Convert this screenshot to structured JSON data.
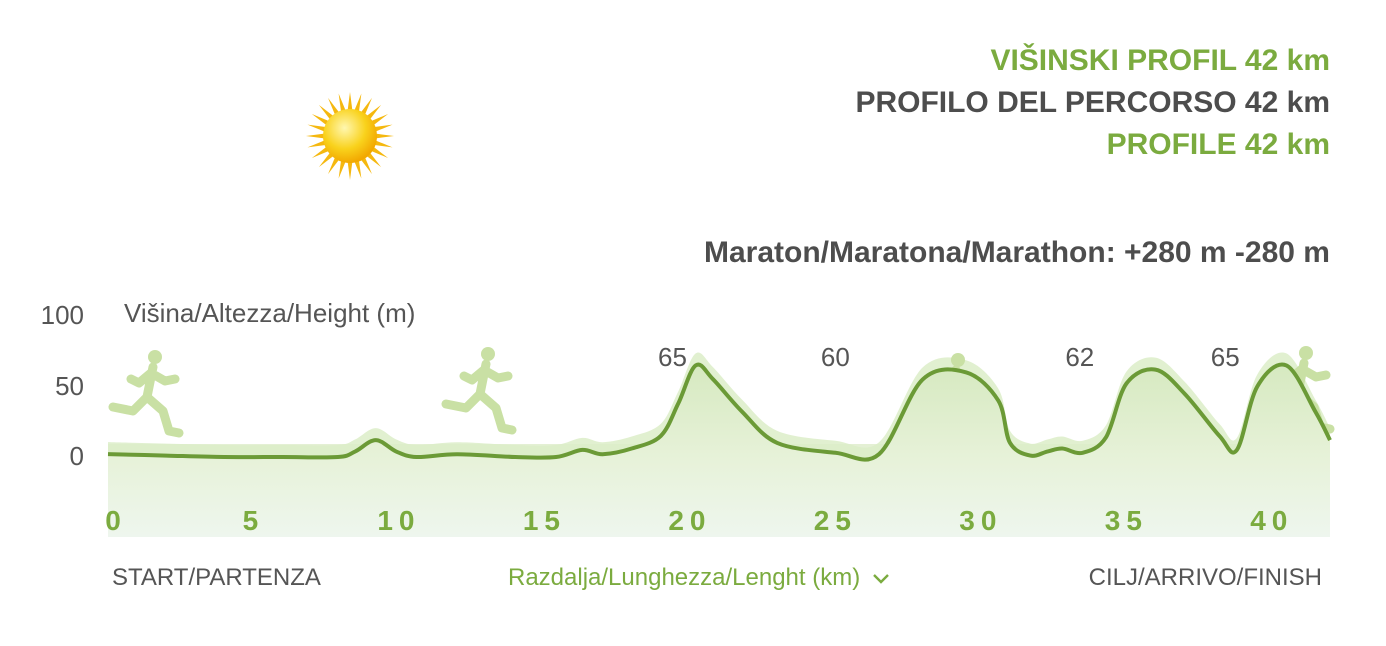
{
  "titles": {
    "slovenian": "VIŠINSKI PROFIL 42 km",
    "italian": "PROFILO DEL PERCORSO 42 km",
    "english": "PROFILE 42 km"
  },
  "summary": "Maraton/Maratona/Marathon: +280 m -280 m",
  "labels": {
    "start": "START/PARTENZA",
    "distance": "Razdalja/Lunghezza/Lenght (km)",
    "finish": "CILJ/ARRIVO/FINISH"
  },
  "colors": {
    "accent_green": "#7bab3f",
    "profile_line": "#6b9a36",
    "text_gray": "#4d4d4d",
    "fill_light": "#dcedc8",
    "sun": "#f5c518"
  },
  "icons": [
    "sun-icon",
    "runner-icon",
    "chevron-down-icon"
  ],
  "chart_data": {
    "type": "area",
    "ylabel": "Višina/Altezza/Height (m)",
    "xlabel": "Razdalja/Lunghezza/Lenght (km)",
    "ylim": [
      0,
      100
    ],
    "xlim": [
      0,
      42
    ],
    "x_ticks": [
      0,
      5,
      10,
      15,
      20,
      25,
      30,
      35,
      40
    ],
    "y_ticks": [
      0,
      50,
      100
    ],
    "x": [
      0,
      2,
      4,
      6,
      7.9,
      8.5,
      9.2,
      9.9,
      10.6,
      12,
      14,
      15.4,
      16.3,
      17,
      18,
      19,
      19.6,
      20.2,
      20.8,
      21.8,
      23,
      25,
      26.5,
      28,
      29.5,
      30.6,
      31,
      31.7,
      32.3,
      32.8,
      33.5,
      34.3,
      35,
      36,
      37,
      38.2,
      38.8,
      39.5,
      40.5,
      41.5,
      42
    ],
    "values": [
      2,
      1,
      0,
      0,
      0,
      4,
      12,
      4,
      0,
      2,
      0,
      0,
      5,
      2,
      6,
      15,
      38,
      65,
      55,
      32,
      10,
      3,
      2,
      55,
      60,
      40,
      10,
      1,
      4,
      6,
      3,
      14,
      52,
      62,
      45,
      15,
      5,
      50,
      65,
      32,
      12
    ],
    "annotations": [
      {
        "x": 19.4,
        "label": "65"
      },
      {
        "x": 25,
        "label": "60"
      },
      {
        "x": 33.4,
        "label": "62"
      },
      {
        "x": 38.4,
        "label": "65"
      }
    ]
  }
}
